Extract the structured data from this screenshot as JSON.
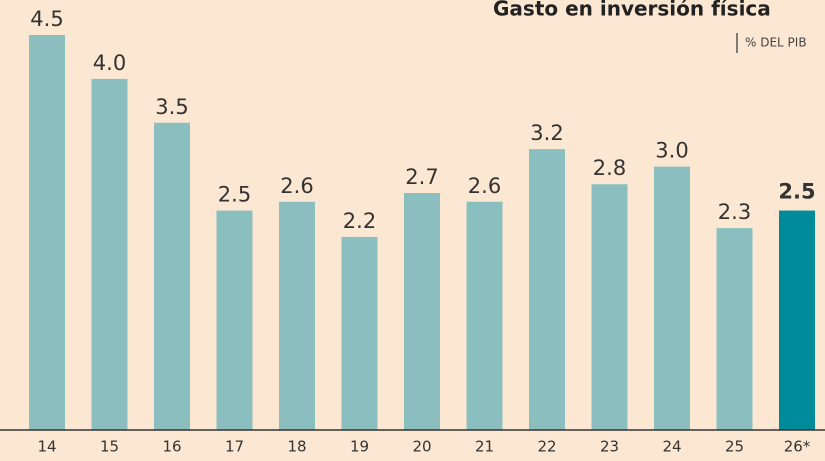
{
  "chart_data": {
    "type": "bar",
    "title": "Gasto en inversión física",
    "subtitle": "% DEL PIB",
    "categories": [
      "14",
      "15",
      "16",
      "17",
      "18",
      "19",
      "20",
      "21",
      "22",
      "23",
      "24",
      "25",
      "26*"
    ],
    "values": [
      4.5,
      4.0,
      3.5,
      2.5,
      2.6,
      2.2,
      2.7,
      2.6,
      3.2,
      2.8,
      3.0,
      2.3,
      2.5
    ],
    "value_labels": [
      "4.5",
      "4.0",
      "3.5",
      "2.5",
      "2.6",
      "2.2",
      "2.7",
      "2.6",
      "3.2",
      "2.8",
      "3.0",
      "2.3",
      "2.5"
    ],
    "colors": [
      "#8bbfbf",
      "#8bbfbf",
      "#8bbfbf",
      "#8bbfbf",
      "#8bbfbf",
      "#8bbfbf",
      "#8bbfbf",
      "#8bbfbf",
      "#8bbfbf",
      "#8bbfbf",
      "#8bbfbf",
      "#8bbfbf",
      "#008b9a"
    ],
    "ylim": [
      0,
      4.5
    ]
  }
}
